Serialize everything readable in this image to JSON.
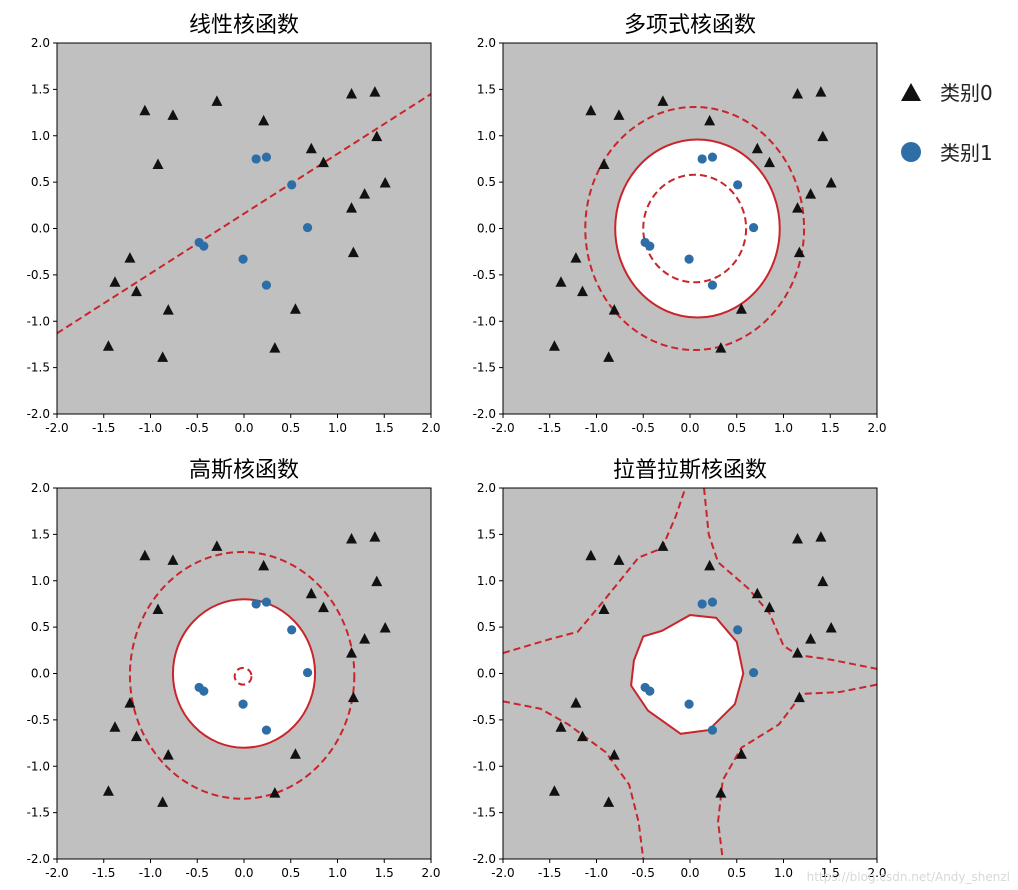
{
  "chart_data": [
    {
      "type": "scatter",
      "title": "线性核函数",
      "xlim": [
        -2.0,
        2.0
      ],
      "ylim": [
        -2.0,
        2.0
      ],
      "xticks": [
        "-2.0",
        "-1.5",
        "-1.0",
        "-0.5",
        "0.0",
        "0.5",
        "1.0",
        "1.5",
        "2.0"
      ],
      "yticks": [
        "-2.0",
        "-1.5",
        "-1.0",
        "-0.5",
        "0.0",
        "0.5",
        "1.0",
        "1.5",
        "2.0"
      ],
      "boundary": {
        "kind": "line",
        "points": [
          [
            -2.0,
            -1.13
          ],
          [
            2.0,
            1.45
          ]
        ],
        "style": "dashed"
      }
    },
    {
      "type": "scatter",
      "title": "多项式核函数",
      "xlim": [
        -2.0,
        2.0
      ],
      "ylim": [
        -2.0,
        2.0
      ],
      "xticks": [
        "-2.0",
        "-1.5",
        "-1.0",
        "-0.5",
        "0.0",
        "0.5",
        "1.0",
        "1.5",
        "2.0"
      ],
      "yticks": [
        "-2.0",
        "-1.5",
        "-1.0",
        "-0.5",
        "0.0",
        "0.5",
        "1.0",
        "1.5",
        "2.0"
      ],
      "region": {
        "kind": "ellipse",
        "cx": 0.08,
        "cy": 0.0,
        "rx": 0.88,
        "ry": 0.96
      },
      "boundaries": [
        {
          "kind": "ellipse",
          "cx": 0.08,
          "cy": 0.0,
          "rx": 0.88,
          "ry": 0.96,
          "style": "solid"
        },
        {
          "kind": "ellipse",
          "cx": 0.05,
          "cy": 0.0,
          "rx": 1.17,
          "ry": 1.31,
          "style": "dashed"
        },
        {
          "kind": "ellipse",
          "cx": 0.05,
          "cy": 0.0,
          "rx": 0.55,
          "ry": 0.58,
          "style": "dashed"
        }
      ]
    },
    {
      "type": "scatter",
      "title": "高斯核函数",
      "xlim": [
        -2.0,
        2.0
      ],
      "ylim": [
        -2.0,
        2.0
      ],
      "xticks": [
        "-2.0",
        "-1.5",
        "-1.0",
        "-0.5",
        "0.0",
        "0.5",
        "1.0",
        "1.5",
        "2.0"
      ],
      "yticks": [
        "-2.0",
        "-1.5",
        "-1.0",
        "-0.5",
        "0.0",
        "0.5",
        "1.0",
        "1.5",
        "2.0"
      ],
      "region": {
        "kind": "ellipse",
        "cx": 0.0,
        "cy": 0.0,
        "rx": 0.76,
        "ry": 0.8
      },
      "boundaries": [
        {
          "kind": "ellipse",
          "cx": 0.0,
          "cy": 0.0,
          "rx": 0.76,
          "ry": 0.8,
          "style": "solid"
        },
        {
          "kind": "ellipse",
          "cx": -0.02,
          "cy": -0.02,
          "rx": 1.2,
          "ry": 1.33,
          "style": "dashed"
        },
        {
          "kind": "ellipse",
          "cx": -0.01,
          "cy": -0.03,
          "rx": 0.09,
          "ry": 0.09,
          "style": "dashed"
        }
      ]
    },
    {
      "type": "scatter",
      "title": "拉普拉斯核函数",
      "xlim": [
        -2.0,
        2.0
      ],
      "ylim": [
        -2.0,
        2.0
      ],
      "xticks": [
        "-2.0",
        "-1.5",
        "-1.0",
        "-0.5",
        "0.0",
        "0.5",
        "1.0",
        "1.5",
        "2.0"
      ],
      "yticks": [
        "-2.0",
        "-1.5",
        "-1.0",
        "-0.5",
        "0.0",
        "0.5",
        "1.0",
        "1.5",
        "2.0"
      ],
      "region": {
        "kind": "polygon",
        "points": [
          [
            -0.5,
            0.4
          ],
          [
            -0.3,
            0.46
          ],
          [
            0.0,
            0.63
          ],
          [
            0.28,
            0.6
          ],
          [
            0.5,
            0.34
          ],
          [
            0.57,
            0.0
          ],
          [
            0.48,
            -0.33
          ],
          [
            0.2,
            -0.61
          ],
          [
            -0.1,
            -0.65
          ],
          [
            -0.45,
            -0.4
          ],
          [
            -0.63,
            -0.13
          ],
          [
            -0.6,
            0.14
          ]
        ]
      },
      "boundaries": [
        {
          "kind": "polyline",
          "style": "solid",
          "closed": true,
          "points": [
            [
              -0.5,
              0.4
            ],
            [
              -0.3,
              0.46
            ],
            [
              0.0,
              0.63
            ],
            [
              0.28,
              0.6
            ],
            [
              0.5,
              0.34
            ],
            [
              0.57,
              0.0
            ],
            [
              0.48,
              -0.33
            ],
            [
              0.2,
              -0.61
            ],
            [
              -0.1,
              -0.65
            ],
            [
              -0.45,
              -0.4
            ],
            [
              -0.63,
              -0.13
            ],
            [
              -0.6,
              0.14
            ]
          ]
        },
        {
          "kind": "polyline",
          "style": "dashed",
          "closed": false,
          "points": [
            [
              -2.0,
              0.22
            ],
            [
              -1.5,
              0.37
            ],
            [
              -1.2,
              0.45
            ],
            [
              -0.95,
              0.75
            ],
            [
              -0.55,
              1.25
            ],
            [
              -0.3,
              1.35
            ],
            [
              -0.15,
              1.7
            ],
            [
              -0.05,
              2.0
            ]
          ]
        },
        {
          "kind": "polyline",
          "style": "dashed",
          "closed": false,
          "points": [
            [
              0.15,
              2.0
            ],
            [
              0.2,
              1.5
            ],
            [
              0.3,
              1.2
            ],
            [
              0.62,
              0.92
            ],
            [
              0.85,
              0.65
            ],
            [
              1.0,
              0.3
            ],
            [
              1.15,
              0.2
            ],
            [
              1.5,
              0.15
            ],
            [
              2.0,
              0.05
            ]
          ]
        },
        {
          "kind": "polyline",
          "style": "dashed",
          "closed": false,
          "points": [
            [
              -2.0,
              -0.3
            ],
            [
              -1.6,
              -0.38
            ],
            [
              -1.3,
              -0.55
            ],
            [
              -0.9,
              -0.85
            ],
            [
              -0.65,
              -1.2
            ],
            [
              -0.55,
              -1.6
            ],
            [
              -0.5,
              -2.0
            ]
          ]
        },
        {
          "kind": "polyline",
          "style": "dashed",
          "closed": false,
          "points": [
            [
              2.0,
              -0.12
            ],
            [
              1.6,
              -0.2
            ],
            [
              1.2,
              -0.22
            ],
            [
              0.95,
              -0.55
            ],
            [
              0.55,
              -0.8
            ],
            [
              0.35,
              -1.15
            ],
            [
              0.3,
              -1.6
            ],
            [
              0.35,
              -2.0
            ]
          ]
        }
      ]
    }
  ],
  "points": {
    "class0": [
      [
        -1.45,
        -1.27
      ],
      [
        -1.38,
        -0.58
      ],
      [
        -1.22,
        -0.32
      ],
      [
        -1.15,
        -0.68
      ],
      [
        -1.06,
        1.27
      ],
      [
        -0.92,
        0.69
      ],
      [
        -0.87,
        -1.39
      ],
      [
        -0.81,
        -0.88
      ],
      [
        -0.76,
        1.22
      ],
      [
        -0.29,
        1.37
      ],
      [
        0.21,
        1.16
      ],
      [
        0.55,
        -0.87
      ],
      [
        0.33,
        -1.29
      ],
      [
        0.72,
        0.86
      ],
      [
        0.85,
        0.71
      ],
      [
        1.15,
        1.45
      ],
      [
        1.15,
        0.22
      ],
      [
        1.17,
        -0.26
      ],
      [
        1.29,
        0.37
      ],
      [
        1.4,
        1.47
      ],
      [
        1.42,
        0.99
      ],
      [
        1.51,
        0.49
      ]
    ],
    "class1": [
      [
        -0.48,
        -0.15
      ],
      [
        -0.43,
        -0.19
      ],
      [
        -0.01,
        -0.33
      ],
      [
        0.13,
        0.75
      ],
      [
        0.24,
        0.77
      ],
      [
        0.51,
        0.47
      ],
      [
        0.68,
        0.01
      ],
      [
        0.24,
        -0.61
      ]
    ]
  },
  "legend": {
    "position": "top-right",
    "items": [
      {
        "label": "类别0",
        "marker": "triangle"
      },
      {
        "label": "类别1",
        "marker": "circle"
      }
    ]
  },
  "watermark": "https://blog.csdn.net/Andy_shenzl",
  "colors": {
    "background": "#c0c0c0",
    "region": "#ffffff",
    "boundary": "#c9252b",
    "class0": "#111111",
    "class1": "#2e6ea6"
  }
}
